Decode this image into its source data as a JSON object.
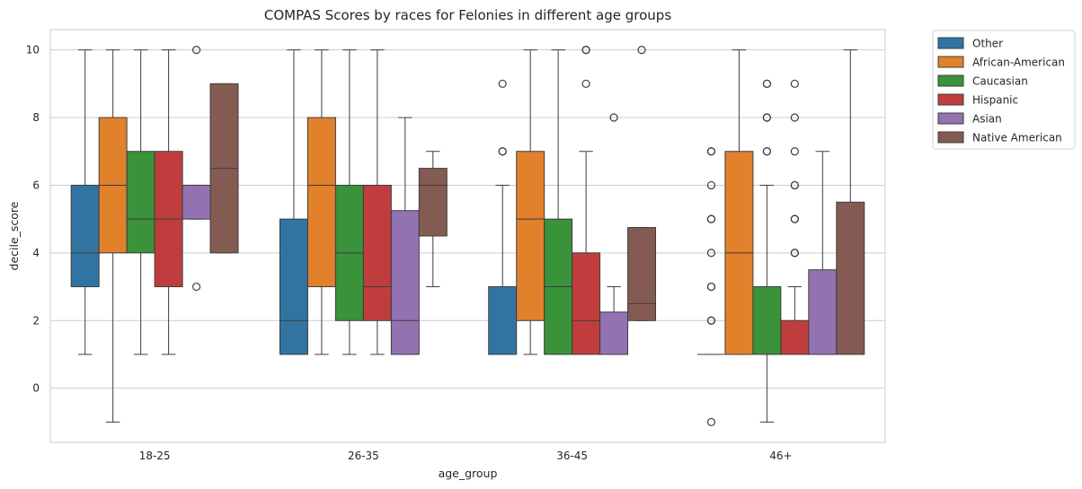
{
  "chart_data": {
    "type": "boxplot",
    "title": "COMPAS Scores by races for Felonies in different age groups",
    "xlabel": "age_group",
    "ylabel": "decile_score",
    "categories": [
      "18-25",
      "26-35",
      "36-45",
      "46+"
    ],
    "ylim": [
      -1.6,
      10.6
    ],
    "yticks": [
      0,
      2,
      4,
      6,
      8,
      10
    ],
    "grid": "horizontal",
    "legend_position": "outside-top-right",
    "series": [
      {
        "name": "Other",
        "color": "#3274a1",
        "boxes": [
          {
            "whislo": 1,
            "q1": 3,
            "med": 4,
            "q3": 6,
            "whishi": 10,
            "fliers": []
          },
          {
            "whislo": 1,
            "q1": 1,
            "med": 2,
            "q3": 5,
            "whishi": 10,
            "fliers": []
          },
          {
            "whislo": 1,
            "q1": 1,
            "med": 1,
            "q3": 3,
            "whishi": 6,
            "fliers": [
              7,
              7,
              9
            ]
          },
          {
            "whislo": 1,
            "q1": 1,
            "med": 1,
            "q3": 1,
            "whishi": 1,
            "fliers": [
              -1,
              2,
              2,
              3,
              3,
              4,
              5,
              5,
              6,
              7,
              7
            ]
          }
        ]
      },
      {
        "name": "African-American",
        "color": "#e1812c",
        "boxes": [
          {
            "whislo": -1,
            "q1": 4,
            "med": 6,
            "q3": 8,
            "whishi": 10,
            "fliers": []
          },
          {
            "whislo": 1,
            "q1": 3,
            "med": 6,
            "q3": 8,
            "whishi": 10,
            "fliers": []
          },
          {
            "whislo": 1,
            "q1": 2,
            "med": 5,
            "q3": 7,
            "whishi": 10,
            "fliers": []
          },
          {
            "whislo": 1,
            "q1": 1,
            "med": 4,
            "q3": 7,
            "whishi": 10,
            "fliers": []
          }
        ]
      },
      {
        "name": "Caucasian",
        "color": "#3a923a",
        "boxes": [
          {
            "whislo": 1,
            "q1": 4,
            "med": 5,
            "q3": 7,
            "whishi": 10,
            "fliers": []
          },
          {
            "whislo": 1,
            "q1": 2,
            "med": 4,
            "q3": 6,
            "whishi": 10,
            "fliers": []
          },
          {
            "whislo": 1,
            "q1": 1,
            "med": 3,
            "q3": 5,
            "whishi": 10,
            "fliers": []
          },
          {
            "whislo": -1,
            "q1": 1,
            "med": 1,
            "q3": 3,
            "whishi": 6,
            "fliers": [
              7,
              7,
              8,
              8,
              9,
              9
            ]
          }
        ]
      },
      {
        "name": "Hispanic",
        "color": "#c03d3e",
        "boxes": [
          {
            "whislo": 1,
            "q1": 3,
            "med": 5,
            "q3": 7,
            "whishi": 10,
            "fliers": []
          },
          {
            "whislo": 1,
            "q1": 2,
            "med": 3,
            "q3": 6,
            "whishi": 10,
            "fliers": []
          },
          {
            "whislo": 1,
            "q1": 1,
            "med": 2,
            "q3": 4,
            "whishi": 7,
            "fliers": [
              9,
              10,
              10
            ]
          },
          {
            "whislo": 1,
            "q1": 1,
            "med": 1,
            "q3": 2,
            "whishi": 3,
            "fliers": [
              4,
              4,
              5,
              5,
              6,
              6,
              7,
              8,
              9
            ]
          }
        ]
      },
      {
        "name": "Asian",
        "color": "#9372b2",
        "boxes": [
          {
            "whislo": 5,
            "q1": 5,
            "med": 6,
            "q3": 6,
            "whishi": 6,
            "fliers": [
              3,
              10
            ]
          },
          {
            "whislo": 1,
            "q1": 1,
            "med": 2,
            "q3": 5.25,
            "whishi": 8,
            "fliers": []
          },
          {
            "whislo": 1,
            "q1": 1,
            "med": 1,
            "q3": 2.25,
            "whishi": 3,
            "fliers": [
              8
            ]
          },
          {
            "whislo": 1,
            "q1": 1,
            "med": 1,
            "q3": 3.5,
            "whishi": 7,
            "fliers": []
          }
        ]
      },
      {
        "name": "Native American",
        "color": "#845b53",
        "boxes": [
          {
            "whislo": 4,
            "q1": 4,
            "med": 6.5,
            "q3": 9,
            "whishi": 9,
            "fliers": []
          },
          {
            "whislo": 3,
            "q1": 4.5,
            "med": 6,
            "q3": 6.5,
            "whishi": 7,
            "fliers": []
          },
          {
            "whislo": 2,
            "q1": 2,
            "med": 2.5,
            "q3": 4.75,
            "whishi": 4.75,
            "fliers": [
              10
            ]
          },
          {
            "whislo": 1,
            "q1": 1,
            "med": 1,
            "q3": 5.5,
            "whishi": 10,
            "fliers": []
          }
        ]
      }
    ]
  }
}
